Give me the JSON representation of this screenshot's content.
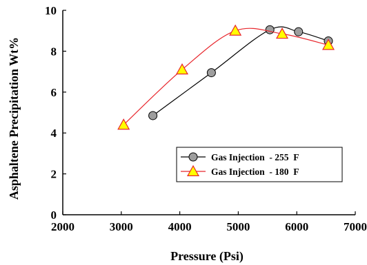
{
  "chart_data": {
    "type": "line",
    "xlabel": "Pressure (Psi)",
    "ylabel": "Asphaltene Precipitation Wt%",
    "xlim": [
      2000,
      7000
    ],
    "ylim": [
      0,
      10
    ],
    "x_ticks": [
      2000,
      3000,
      4000,
      5000,
      6000,
      7000
    ],
    "y_ticks": [
      0,
      2,
      4,
      6,
      8,
      10
    ],
    "grid": false,
    "legend_position": "lower-right",
    "series": [
      {
        "name": "Gas Injection  - 255  F",
        "color": "#000000",
        "marker": "circle",
        "marker_color": "#9e9e9e",
        "x": [
          3540,
          4540,
          5540,
          6030,
          6540
        ],
        "y": [
          4.85,
          6.95,
          9.05,
          8.95,
          8.5
        ]
      },
      {
        "name": "Gas Injection  - 180  F",
        "color": "#e8262c",
        "marker": "triangle",
        "marker_color": "#ffff00",
        "x": [
          3040,
          4040,
          4950,
          5750,
          6540
        ],
        "y": [
          4.4,
          7.1,
          9.0,
          8.85,
          8.3
        ]
      }
    ]
  }
}
